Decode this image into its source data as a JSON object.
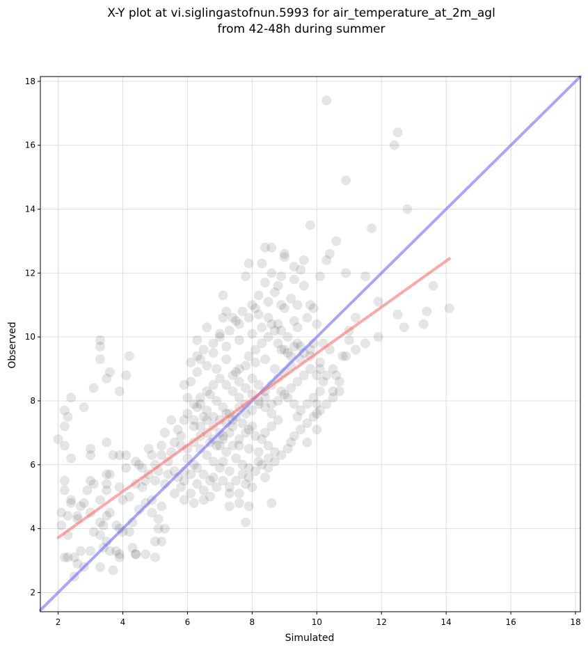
{
  "chart_data": {
    "type": "scatter",
    "title_lines": [
      "X-Y plot at vi.siglingastofnun.5993 for air_temperature_at_2m_agl",
      "from 42-48h during summer"
    ],
    "xlabel": "Simulated",
    "ylabel": "Observed",
    "xlim": [
      1.45,
      18.15
    ],
    "ylim": [
      1.4,
      18.15
    ],
    "xticks": [
      2,
      4,
      6,
      8,
      10,
      12,
      14,
      16,
      18
    ],
    "yticks": [
      2,
      4,
      6,
      8,
      10,
      12,
      14,
      16,
      18
    ],
    "grid": true,
    "colors": {
      "points": "#000000",
      "identity_line": "#6b6bff",
      "fit_line": "#ff6b6b",
      "grid": "#dddddd"
    },
    "identity_line": {
      "x": [
        1.45,
        18.15
      ],
      "y": [
        1.45,
        18.15
      ]
    },
    "fit_line": {
      "x": [
        2.0,
        14.1
      ],
      "y": [
        3.72,
        12.45
      ]
    },
    "points": [
      [
        10.3,
        17.4
      ],
      [
        12.4,
        16.0
      ],
      [
        12.5,
        16.4
      ],
      [
        10.9,
        14.9
      ],
      [
        12.8,
        14.0
      ],
      [
        9.8,
        13.5
      ],
      [
        11.7,
        13.4
      ],
      [
        10.6,
        13.0
      ],
      [
        10.4,
        12.6
      ],
      [
        8.4,
        12.8
      ],
      [
        8.6,
        12.8
      ],
      [
        9.0,
        12.6
      ],
      [
        9.0,
        12.5
      ],
      [
        9.6,
        12.4
      ],
      [
        10.3,
        12.4
      ],
      [
        9.3,
        12.2
      ],
      [
        7.9,
        12.3
      ],
      [
        8.3,
        12.3
      ],
      [
        10.9,
        12.0
      ],
      [
        11.5,
        11.9
      ],
      [
        7.8,
        11.9
      ],
      [
        10.1,
        11.9
      ],
      [
        13.6,
        11.6
      ],
      [
        9.6,
        11.6
      ],
      [
        8.8,
        11.6
      ],
      [
        7.1,
        11.3
      ],
      [
        8.2,
        11.3
      ],
      [
        8.7,
        11.4
      ],
      [
        9.4,
        11.0
      ],
      [
        9.8,
        11.0
      ],
      [
        11.9,
        11.1
      ],
      [
        14.1,
        10.9
      ],
      [
        7.2,
        10.8
      ],
      [
        8.1,
        10.9
      ],
      [
        9.0,
        10.9
      ],
      [
        12.5,
        10.7
      ],
      [
        11.2,
        10.6
      ],
      [
        13.4,
        10.8
      ],
      [
        13.3,
        10.4
      ],
      [
        12.7,
        10.3
      ],
      [
        6.6,
        10.3
      ],
      [
        7.5,
        10.5
      ],
      [
        8.6,
        10.4
      ],
      [
        9.3,
        10.5
      ],
      [
        10.0,
        10.4
      ],
      [
        7.0,
        10.1
      ],
      [
        8.9,
        10.2
      ],
      [
        11.0,
        10.2
      ],
      [
        11.9,
        10.0
      ],
      [
        6.3,
        9.9
      ],
      [
        3.3,
        9.9
      ],
      [
        3.3,
        9.7
      ],
      [
        4.2,
        9.4
      ],
      [
        3.3,
        9.3
      ],
      [
        3.6,
        8.9
      ],
      [
        4.1,
        8.8
      ],
      [
        3.5,
        8.7
      ],
      [
        3.1,
        8.4
      ],
      [
        3.9,
        8.3
      ],
      [
        2.4,
        8.1
      ],
      [
        2.8,
        7.8
      ],
      [
        2.2,
        7.7
      ],
      [
        2.3,
        7.5
      ],
      [
        2.2,
        7.2
      ],
      [
        2.0,
        6.8
      ],
      [
        2.2,
        6.6
      ],
      [
        2.4,
        6.2
      ],
      [
        3.5,
        6.7
      ],
      [
        3.0,
        6.5
      ],
      [
        3.0,
        6.3
      ],
      [
        3.7,
        6.3
      ],
      [
        3.9,
        6.3
      ],
      [
        4.1,
        6.3
      ],
      [
        4.1,
        5.9
      ],
      [
        4.4,
        6.1
      ],
      [
        4.5,
        6.0
      ],
      [
        4.8,
        6.5
      ],
      [
        4.9,
        6.3
      ],
      [
        3.5,
        5.7
      ],
      [
        3.6,
        5.7
      ],
      [
        3.5,
        5.4
      ],
      [
        3.5,
        5.2
      ],
      [
        3.9,
        5.3
      ],
      [
        4.0,
        4.9
      ],
      [
        4.2,
        5.0
      ],
      [
        4.4,
        5.4
      ],
      [
        4.6,
        5.3
      ],
      [
        4.7,
        5.5
      ],
      [
        3.0,
        5.5
      ],
      [
        3.1,
        5.4
      ],
      [
        2.9,
        5.2
      ],
      [
        2.2,
        5.5
      ],
      [
        2.2,
        5.2
      ],
      [
        2.1,
        4.5
      ],
      [
        2.3,
        4.4
      ],
      [
        2.4,
        4.8
      ],
      [
        2.4,
        4.9
      ],
      [
        2.7,
        4.7
      ],
      [
        2.8,
        4.8
      ],
      [
        3.0,
        4.5
      ],
      [
        3.3,
        4.9
      ],
      [
        3.6,
        4.5
      ],
      [
        3.5,
        4.4
      ],
      [
        2.6,
        4.4
      ],
      [
        2.6,
        4.3
      ],
      [
        2.1,
        4.1
      ],
      [
        2.3,
        3.8
      ],
      [
        3.3,
        4.2
      ],
      [
        3.4,
        4.1
      ],
      [
        3.8,
        4.1
      ],
      [
        3.9,
        4.0
      ],
      [
        4.0,
        3.9
      ],
      [
        4.2,
        3.9
      ],
      [
        3.1,
        3.9
      ],
      [
        3.3,
        3.8
      ],
      [
        3.5,
        3.6
      ],
      [
        4.3,
        4.2
      ],
      [
        4.5,
        4.6
      ],
      [
        4.7,
        4.8
      ],
      [
        4.9,
        4.5
      ],
      [
        4.9,
        4.9
      ],
      [
        5.1,
        4.3
      ],
      [
        5.1,
        4.0
      ],
      [
        5.2,
        4.7
      ],
      [
        5.3,
        4.0
      ],
      [
        5.0,
        3.6
      ],
      [
        5.2,
        3.6
      ],
      [
        3.4,
        3.4
      ],
      [
        3.6,
        3.3
      ],
      [
        3.8,
        3.3
      ],
      [
        3.9,
        3.2
      ],
      [
        3.0,
        3.3
      ],
      [
        2.7,
        3.3
      ],
      [
        2.2,
        3.1
      ],
      [
        2.3,
        3.1
      ],
      [
        2.5,
        3.1
      ],
      [
        2.6,
        2.9
      ],
      [
        2.5,
        2.5
      ],
      [
        2.8,
        2.8
      ],
      [
        3.3,
        2.8
      ],
      [
        3.7,
        2.7
      ],
      [
        4.3,
        3.4
      ],
      [
        4.4,
        3.2
      ],
      [
        4.7,
        3.2
      ],
      [
        5.0,
        3.1
      ],
      [
        3.9,
        3.1
      ],
      [
        4.4,
        3.2
      ],
      [
        7.8,
        4.2
      ],
      [
        8.6,
        4.8
      ],
      [
        7.3,
        4.7
      ],
      [
        7.6,
        4.8
      ],
      [
        7.9,
        4.7
      ],
      [
        8.4,
        5.6
      ],
      [
        7.3,
        5.1
      ],
      [
        7.6,
        5.1
      ],
      [
        7.8,
        5.4
      ],
      [
        8.0,
        5.3
      ],
      [
        8.5,
        6.2
      ],
      [
        8.7,
        6.4
      ],
      [
        9.2,
        6.7
      ],
      [
        9.7,
        6.7
      ],
      [
        10.0,
        7.1
      ],
      [
        9.4,
        7.5
      ],
      [
        10.0,
        7.6
      ],
      [
        10.0,
        7.9
      ],
      [
        10.5,
        8.3
      ],
      [
        10.6,
        8.8
      ],
      [
        10.7,
        8.6
      ],
      [
        10.4,
        9.6
      ],
      [
        10.9,
        9.4
      ],
      [
        11.2,
        9.6
      ],
      [
        11.5,
        9.8
      ],
      [
        11.0,
        9.9
      ],
      [
        10.8,
        9.4
      ],
      [
        10.1,
        9.2
      ],
      [
        9.8,
        9.4
      ],
      [
        9.5,
        9.3
      ],
      [
        9.4,
        9.8
      ],
      [
        9.1,
        9.5
      ],
      [
        8.9,
        9.6
      ],
      [
        8.7,
        9.0
      ],
      [
        8.4,
        9.3
      ],
      [
        8.1,
        9.2
      ],
      [
        7.8,
        9.1
      ],
      [
        7.5,
        8.9
      ],
      [
        7.2,
        9.3
      ],
      [
        6.9,
        9.0
      ],
      [
        6.6,
        9.1
      ],
      [
        6.3,
        8.9
      ],
      [
        6.1,
        8.6
      ],
      [
        5.9,
        8.5
      ],
      [
        6.0,
        8.1
      ],
      [
        6.3,
        7.8
      ],
      [
        6.5,
        7.5
      ],
      [
        6.2,
        7.2
      ],
      [
        5.9,
        7.4
      ],
      [
        5.7,
        7.1
      ],
      [
        5.5,
        7.4
      ],
      [
        5.3,
        7.0
      ],
      [
        5.2,
        6.6
      ],
      [
        5.5,
        6.4
      ],
      [
        5.8,
        6.6
      ],
      [
        6.0,
        6.2
      ],
      [
        6.2,
        6.0
      ],
      [
        5.9,
        5.8
      ],
      [
        5.6,
        5.8
      ],
      [
        5.4,
        5.7
      ],
      [
        5.1,
        5.8
      ],
      [
        5.0,
        5.5
      ],
      [
        5.3,
        5.4
      ],
      [
        5.6,
        5.1
      ],
      [
        5.8,
        5.3
      ],
      [
        6.1,
        5.1
      ],
      [
        6.3,
        5.4
      ],
      [
        6.5,
        5.2
      ],
      [
        6.7,
        5.0
      ],
      [
        6.5,
        4.9
      ],
      [
        6.2,
        4.8
      ],
      [
        5.9,
        4.9
      ],
      [
        6.8,
        5.6
      ],
      [
        7.0,
        5.9
      ],
      [
        6.8,
        6.1
      ],
      [
        6.6,
        6.3
      ],
      [
        6.4,
        6.5
      ],
      [
        6.7,
        6.7
      ],
      [
        6.9,
        6.6
      ],
      [
        7.1,
        6.8
      ],
      [
        7.1,
        6.9
      ],
      [
        7.3,
        7.0
      ],
      [
        7.4,
        7.2
      ],
      [
        7.2,
        7.3
      ],
      [
        7.0,
        7.4
      ],
      [
        6.8,
        7.5
      ],
      [
        6.6,
        7.7
      ],
      [
        6.4,
        7.9
      ],
      [
        6.7,
        8.2
      ],
      [
        6.9,
        8.0
      ],
      [
        7.1,
        7.8
      ],
      [
        7.3,
        7.6
      ],
      [
        7.5,
        7.5
      ],
      [
        7.7,
        7.3
      ],
      [
        7.9,
        7.1
      ],
      [
        8.1,
        6.9
      ],
      [
        8.3,
        6.8
      ],
      [
        8.5,
        6.6
      ],
      [
        8.2,
        6.4
      ],
      [
        7.9,
        6.5
      ],
      [
        7.6,
        6.6
      ],
      [
        7.5,
        6.2
      ],
      [
        7.7,
        6.0
      ],
      [
        7.3,
        5.8
      ],
      [
        7.1,
        6.1
      ],
      [
        7.9,
        5.9
      ],
      [
        8.2,
        6.1
      ],
      [
        8.4,
        7.0
      ],
      [
        8.6,
        7.2
      ],
      [
        8.8,
        7.4
      ],
      [
        8.6,
        7.6
      ],
      [
        8.4,
        7.8
      ],
      [
        8.2,
        8.0
      ],
      [
        8.0,
        8.2
      ],
      [
        7.8,
        8.4
      ],
      [
        7.6,
        8.6
      ],
      [
        7.4,
        8.8
      ],
      [
        7.6,
        9.0
      ],
      [
        7.9,
        9.4
      ],
      [
        8.1,
        9.6
      ],
      [
        8.3,
        9.8
      ],
      [
        8.5,
        10.0
      ],
      [
        8.8,
        9.8
      ],
      [
        9.0,
        9.6
      ],
      [
        9.2,
        9.4
      ],
      [
        9.3,
        9.7
      ],
      [
        9.5,
        9.7
      ],
      [
        9.6,
        9.5
      ],
      [
        9.8,
        9.6
      ],
      [
        9.2,
        9.1
      ],
      [
        9.0,
        8.9
      ],
      [
        8.8,
        8.7
      ],
      [
        8.6,
        8.5
      ],
      [
        8.4,
        8.3
      ],
      [
        8.2,
        8.5
      ],
      [
        8.0,
        8.7
      ],
      [
        8.9,
        8.3
      ],
      [
        9.1,
        8.1
      ],
      [
        9.3,
        7.9
      ],
      [
        9.5,
        7.7
      ],
      [
        9.7,
        7.9
      ],
      [
        9.9,
        8.1
      ],
      [
        10.1,
        8.3
      ],
      [
        10.2,
        8.6
      ],
      [
        10.0,
        8.8
      ],
      [
        9.8,
        9.0
      ],
      [
        9.6,
        8.8
      ],
      [
        9.4,
        8.6
      ],
      [
        9.2,
        8.4
      ],
      [
        9.0,
        8.2
      ],
      [
        8.8,
        8.0
      ],
      [
        8.6,
        7.9
      ],
      [
        8.4,
        8.1
      ],
      [
        8.2,
        7.9
      ],
      [
        8.0,
        7.7
      ],
      [
        7.8,
        7.9
      ],
      [
        7.6,
        8.1
      ],
      [
        7.4,
        8.3
      ],
      [
        7.2,
        8.5
      ],
      [
        7.0,
        8.7
      ],
      [
        6.8,
        8.5
      ],
      [
        6.6,
        8.3
      ],
      [
        6.4,
        8.1
      ],
      [
        6.2,
        7.9
      ],
      [
        6.0,
        7.6
      ],
      [
        6.2,
        7.4
      ],
      [
        6.4,
        7.2
      ],
      [
        6.6,
        7.0
      ],
      [
        6.8,
        6.8
      ],
      [
        7.0,
        6.6
      ],
      [
        7.2,
        6.4
      ],
      [
        7.4,
        6.6
      ],
      [
        7.6,
        6.8
      ],
      [
        7.8,
        7.0
      ],
      [
        8.0,
        7.2
      ],
      [
        7.8,
        7.6
      ],
      [
        7.6,
        7.8
      ],
      [
        7.4,
        7.4
      ],
      [
        7.2,
        7.6
      ],
      [
        7.0,
        7.0
      ],
      [
        6.8,
        7.2
      ],
      [
        6.6,
        7.4
      ],
      [
        6.4,
        6.9
      ],
      [
        6.2,
        6.7
      ],
      [
        6.0,
        6.5
      ],
      [
        5.8,
        6.9
      ],
      [
        5.6,
        6.7
      ],
      [
        5.4,
        6.1
      ],
      [
        5.2,
        6.3
      ],
      [
        5.0,
        6.0
      ],
      [
        4.8,
        5.7
      ],
      [
        4.6,
        5.9
      ],
      [
        5.7,
        5.6
      ],
      [
        5.9,
        5.5
      ],
      [
        6.1,
        5.7
      ],
      [
        6.3,
        5.9
      ],
      [
        6.5,
        5.7
      ],
      [
        6.7,
        5.5
      ],
      [
        6.9,
        5.3
      ],
      [
        7.1,
        5.5
      ],
      [
        7.3,
        5.3
      ],
      [
        7.5,
        5.5
      ],
      [
        7.7,
        5.7
      ],
      [
        7.9,
        5.6
      ],
      [
        8.1,
        5.8
      ],
      [
        8.3,
        6.0
      ],
      [
        8.5,
        5.9
      ],
      [
        8.7,
        6.1
      ],
      [
        8.9,
        6.3
      ],
      [
        9.1,
        6.5
      ],
      [
        9.3,
        6.9
      ],
      [
        9.5,
        7.1
      ],
      [
        9.7,
        7.3
      ],
      [
        9.9,
        7.5
      ],
      [
        10.1,
        7.7
      ],
      [
        10.3,
        7.9
      ],
      [
        10.5,
        8.1
      ],
      [
        10.7,
        8.3
      ],
      [
        10.3,
        8.8
      ],
      [
        10.5,
        9.0
      ],
      [
        10.1,
        9.0
      ],
      [
        9.9,
        9.8
      ],
      [
        10.2,
        9.8
      ],
      [
        8.8,
        10.4
      ],
      [
        8.5,
        10.6
      ],
      [
        8.2,
        10.7
      ],
      [
        7.9,
        10.6
      ],
      [
        7.6,
        10.4
      ],
      [
        7.3,
        10.2
      ],
      [
        7.0,
        10.0
      ],
      [
        6.8,
        9.8
      ],
      [
        6.5,
        9.6
      ],
      [
        6.3,
        9.4
      ],
      [
        6.1,
        9.2
      ],
      [
        6.4,
        9.3
      ],
      [
        6.8,
        9.5
      ],
      [
        7.2,
        9.7
      ],
      [
        7.6,
        9.9
      ],
      [
        8.0,
        10.1
      ],
      [
        8.3,
        10.3
      ],
      [
        8.7,
        10.2
      ],
      [
        9.1,
        10.0
      ],
      [
        9.4,
        10.3
      ],
      [
        9.7,
        10.6
      ],
      [
        9.9,
        10.9
      ],
      [
        9.2,
        11.2
      ],
      [
        8.9,
        11.0
      ],
      [
        8.5,
        11.1
      ],
      [
        8.0,
        11.0
      ],
      [
        7.7,
        10.8
      ],
      [
        7.4,
        10.6
      ],
      [
        7.1,
        10.6
      ],
      [
        8.4,
        11.7
      ],
      [
        8.9,
        11.9
      ],
      [
        9.3,
        11.8
      ],
      [
        9.5,
        12.1
      ],
      [
        8.6,
        12.0
      ]
    ]
  }
}
